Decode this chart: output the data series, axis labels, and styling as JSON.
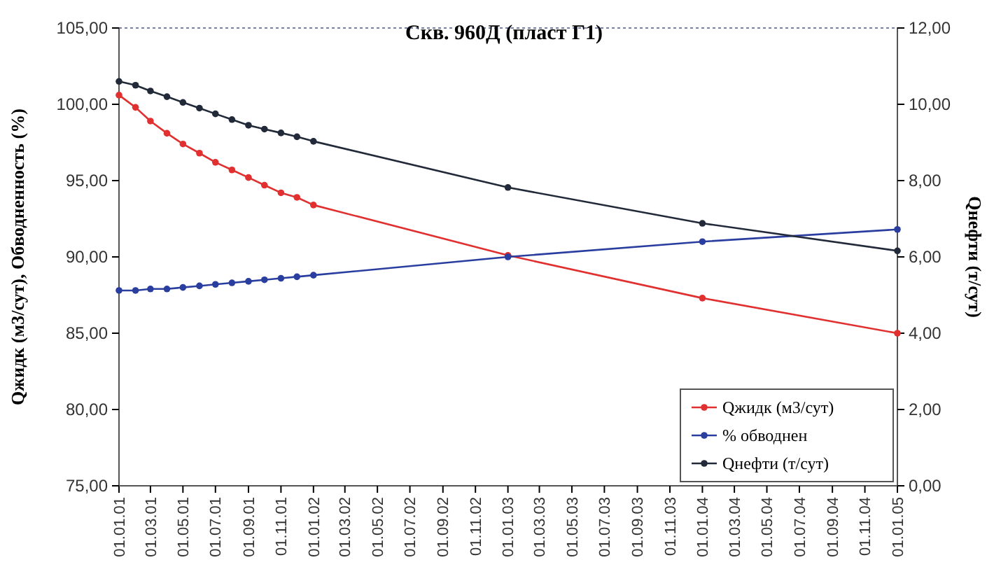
{
  "chart_data": {
    "type": "line",
    "title": "Скв. 960Д (пласт Г1)",
    "ylabel": "Qжидк (м3/сут), Обводненность (%)",
    "y2label": "Qнефти (т/сут)",
    "x": [
      "2001-01-01",
      "2001-02-01",
      "2001-03-01",
      "2001-04-01",
      "2001-05-01",
      "2001-06-01",
      "2001-07-01",
      "2001-08-01",
      "2001-09-01",
      "2001-10-01",
      "2001-11-01",
      "2001-12-01",
      "2002-01-01",
      "2003-01-01",
      "2004-01-01",
      "2005-01-01"
    ],
    "series": [
      {
        "name": "Qжидк (м3/сут)",
        "color": "#e03030",
        "values": [
          100.6,
          99.8,
          98.9,
          98.1,
          97.4,
          96.8,
          96.2,
          95.7,
          95.2,
          94.7,
          94.2,
          93.9,
          93.4,
          90.1,
          87.3,
          85.0
        ]
      },
      {
        "name": "% обводнен",
        "color": "#2a3ea0",
        "values": [
          87.8,
          87.8,
          87.9,
          87.9,
          88.0,
          88.1,
          88.2,
          88.3,
          88.4,
          88.5,
          88.6,
          88.7,
          88.8,
          90.0,
          91.0,
          91.8
        ]
      },
      {
        "name": "Qнефти (т/сут)",
        "color": "#222a3a",
        "axis": "y2",
        "values": [
          10.6,
          10.5,
          10.35,
          10.2,
          10.05,
          9.9,
          9.75,
          9.6,
          9.45,
          9.35,
          9.25,
          9.15,
          9.03,
          7.82,
          6.88,
          6.16
        ]
      }
    ],
    "xlim": [
      "2001-01-01",
      "2005-01-01"
    ],
    "xticks": [
      {
        "value": "2001-01-01",
        "label": "01.01.01"
      },
      {
        "value": "2001-03-01",
        "label": "01.03.01"
      },
      {
        "value": "2001-05-01",
        "label": "01.05.01"
      },
      {
        "value": "2001-07-01",
        "label": "01.07.01"
      },
      {
        "value": "2001-09-01",
        "label": "01.09.01"
      },
      {
        "value": "2001-11-01",
        "label": "01.11.01"
      },
      {
        "value": "2002-01-01",
        "label": "01.01.02"
      },
      {
        "value": "2002-03-01",
        "label": "01.03.02"
      },
      {
        "value": "2002-05-01",
        "label": "01.05.02"
      },
      {
        "value": "2002-07-01",
        "label": "01.07.02"
      },
      {
        "value": "2002-09-01",
        "label": "01.09.02"
      },
      {
        "value": "2002-11-01",
        "label": "01.11.02"
      },
      {
        "value": "2003-01-01",
        "label": "01.01.03"
      },
      {
        "value": "2003-03-01",
        "label": "01.03.03"
      },
      {
        "value": "2003-05-01",
        "label": "01.05.03"
      },
      {
        "value": "2003-07-01",
        "label": "01.07.03"
      },
      {
        "value": "2003-09-01",
        "label": "01.09.03"
      },
      {
        "value": "2003-11-01",
        "label": "01.11.03"
      },
      {
        "value": "2004-01-01",
        "label": "01.01.04"
      },
      {
        "value": "2004-03-01",
        "label": "01.03.04"
      },
      {
        "value": "2004-05-01",
        "label": "01.05.04"
      },
      {
        "value": "2004-07-01",
        "label": "01.07.04"
      },
      {
        "value": "2004-09-01",
        "label": "01.09.04"
      },
      {
        "value": "2004-11-01",
        "label": "01.11.04"
      },
      {
        "value": "2005-01-01",
        "label": "01.01.05"
      }
    ],
    "ylim": [
      75,
      105
    ],
    "yticks": [
      {
        "value": 75,
        "label": "75,00"
      },
      {
        "value": 80,
        "label": "80,00"
      },
      {
        "value": 85,
        "label": "85,00"
      },
      {
        "value": 90,
        "label": "90,00"
      },
      {
        "value": 95,
        "label": "95,00"
      },
      {
        "value": 100,
        "label": "100,00"
      },
      {
        "value": 105,
        "label": "105,00"
      }
    ],
    "y2lim": [
      0,
      12
    ],
    "y2ticks": [
      {
        "value": 0,
        "label": "0,00"
      },
      {
        "value": 2,
        "label": "2,00"
      },
      {
        "value": 4,
        "label": "4,00"
      },
      {
        "value": 6,
        "label": "6,00"
      },
      {
        "value": 8,
        "label": "8,00"
      },
      {
        "value": 10,
        "label": "10,00"
      },
      {
        "value": 12,
        "label": "12,00"
      }
    ],
    "marker": "circle",
    "line_style": "solid",
    "legend": "bottom right",
    "grid": false
  }
}
